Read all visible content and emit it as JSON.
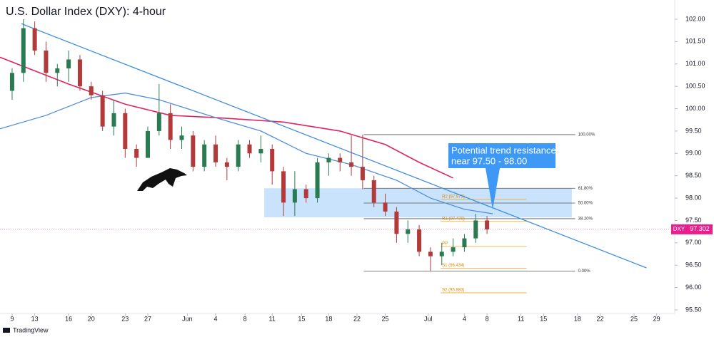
{
  "chart_data": {
    "type": "candlestick",
    "title": "U.S. Dollar Index (DXY): 4-hour",
    "x": [
      0,
      1,
      2,
      3,
      4,
      5,
      6,
      7,
      8,
      9,
      10,
      11,
      12,
      13,
      14,
      15,
      16,
      17,
      18,
      19,
      20,
      21,
      22,
      23,
      24,
      25,
      26,
      27,
      28,
      29,
      30,
      31,
      32,
      33,
      34,
      35,
      36,
      37,
      38,
      39,
      40,
      41,
      42
    ],
    "open": [
      100.4,
      100.8,
      101.8,
      101.3,
      100.8,
      100.9,
      101.1,
      100.5,
      100.3,
      99.6,
      99.9,
      99.1,
      98.9,
      99.5,
      99.9,
      99.3,
      99.4,
      98.7,
      99.2,
      98.8,
      98.7,
      99.2,
      99.0,
      99.1,
      98.6,
      97.9,
      98.2,
      98.0,
      98.8,
      98.9,
      98.8,
      98.7,
      98.4,
      97.9,
      97.7,
      97.2,
      97.3,
      96.8,
      96.7,
      96.8,
      96.9,
      97.1,
      97.5
    ],
    "high": [
      100.9,
      102.0,
      101.95,
      101.5,
      101.0,
      101.3,
      101.2,
      100.6,
      100.4,
      100.2,
      100.0,
      99.2,
      99.6,
      100.55,
      100.1,
      99.6,
      99.5,
      99.3,
      99.4,
      98.9,
      99.3,
      99.3,
      99.4,
      99.2,
      98.7,
      98.6,
      98.3,
      98.9,
      99.0,
      99.0,
      99.4,
      99.42,
      98.5,
      98.1,
      97.8,
      97.5,
      97.4,
      96.9,
      97.0,
      97.1,
      97.2,
      97.65,
      97.6
    ],
    "low": [
      100.2,
      100.6,
      101.2,
      100.6,
      100.5,
      100.6,
      100.4,
      100.2,
      99.5,
      99.4,
      98.9,
      98.7,
      98.9,
      99.4,
      99.1,
      99.1,
      98.6,
      98.6,
      98.7,
      98.4,
      98.6,
      98.9,
      98.8,
      98.3,
      97.6,
      97.6,
      97.9,
      97.9,
      98.5,
      98.6,
      98.5,
      98.2,
      97.8,
      97.6,
      97.0,
      97.0,
      96.7,
      96.37,
      96.5,
      96.7,
      96.8,
      97.0,
      97.2
    ],
    "close": [
      100.8,
      101.8,
      101.3,
      100.8,
      100.9,
      101.1,
      100.5,
      100.3,
      99.6,
      99.9,
      99.1,
      98.9,
      99.5,
      99.9,
      99.3,
      99.4,
      98.7,
      99.2,
      98.8,
      98.7,
      99.2,
      99.0,
      99.1,
      98.6,
      97.9,
      98.2,
      98.0,
      98.8,
      98.9,
      98.8,
      98.7,
      98.4,
      97.9,
      97.7,
      97.2,
      97.3,
      96.8,
      96.7,
      96.8,
      96.9,
      97.1,
      97.5,
      97.3
    ],
    "up_color": "#2a7a52",
    "down_color": "#b23a3a",
    "xlim": [
      -1.07,
      58.6
    ],
    "ylim": [
      95.42,
      102.43
    ],
    "xticks": [
      {
        "value": 0,
        "label": "9"
      },
      {
        "value": 2,
        "label": "13"
      },
      {
        "value": 5,
        "label": "16"
      },
      {
        "value": 7,
        "label": "20"
      },
      {
        "value": 10,
        "label": "23"
      },
      {
        "value": 12,
        "label": "27"
      },
      {
        "value": 15.5,
        "label": "Jun"
      },
      {
        "value": 18,
        "label": "4"
      },
      {
        "value": 20.6,
        "label": "8"
      },
      {
        "value": 23,
        "label": "11"
      },
      {
        "value": 25.6,
        "label": "15"
      },
      {
        "value": 28,
        "label": "18"
      },
      {
        "value": 30.5,
        "label": "22"
      },
      {
        "value": 33,
        "label": "25"
      },
      {
        "value": 36.8,
        "label": "Jul"
      },
      {
        "value": 40,
        "label": "4"
      },
      {
        "value": 42,
        "label": "8"
      },
      {
        "value": 45,
        "label": "11"
      },
      {
        "value": 47,
        "label": "15"
      },
      {
        "value": 50,
        "label": "18"
      },
      {
        "value": 52,
        "label": "22"
      },
      {
        "value": 55,
        "label": "25"
      },
      {
        "value": 57,
        "label": "29"
      }
    ],
    "yticks": [
      {
        "value": 102,
        "label": "102.00"
      },
      {
        "value": 101.5,
        "label": "101.50"
      },
      {
        "value": 101,
        "label": "101.00"
      },
      {
        "value": 100.5,
        "label": "100.50"
      },
      {
        "value": 100,
        "label": "100.00"
      },
      {
        "value": 99.5,
        "label": "99.50"
      },
      {
        "value": 99,
        "label": "99.00"
      },
      {
        "value": 98.5,
        "label": "98.50"
      },
      {
        "value": 98,
        "label": "98.00"
      },
      {
        "value": 97.5,
        "label": "97.50"
      },
      {
        "value": 97,
        "label": "97.00"
      },
      {
        "value": 96.5,
        "label": "96.50"
      },
      {
        "value": 96,
        "label": "96.00"
      },
      {
        "value": 95.5,
        "label": "95.50"
      }
    ],
    "grid": false,
    "lines": [
      {
        "color": "#e0245e",
        "x": [
          -1.07,
          5,
          10,
          14,
          18,
          24,
          29,
          33,
          36,
          39
        ],
        "values": [
          101.15,
          100.55,
          100.1,
          99.85,
          99.8,
          99.7,
          99.5,
          99.2,
          98.8,
          98.45
        ]
      },
      {
        "color": "#4f8fdd",
        "x": [
          -1.07,
          3,
          7,
          10,
          13,
          18,
          22,
          26,
          30,
          34,
          37,
          40,
          42.5
        ],
        "values": [
          99.55,
          99.85,
          100.25,
          100.35,
          100.2,
          99.8,
          99.5,
          99.0,
          98.75,
          98.4,
          98.0,
          97.75,
          97.65
        ]
      },
      {
        "color": "#3f8fe0",
        "x": [
          0.82,
          56.1
        ],
        "values": [
          101.9,
          96.44
        ]
      }
    ],
    "zone": [
      97.57,
      98.22
    ],
    "fib_levels": [
      {
        "value": 99.42,
        "label": "100.00%"
      },
      {
        "value": 98.22,
        "label": "61.80%"
      },
      {
        "value": 97.89,
        "label": "50.00%"
      },
      {
        "value": 97.54,
        "label": "38.20%"
      },
      {
        "value": 96.37,
        "label": "0.00%"
      }
    ],
    "pivots": [
      {
        "value": 97.973,
        "label": "R2 (97.973)"
      },
      {
        "value": 97.479,
        "label": "R1 (97.479)"
      },
      {
        "value": 96.92,
        "label": "PP"
      },
      {
        "value": 96.434,
        "label": "S1 (96.434)"
      },
      {
        "value": 95.883,
        "label": "S2 (95.883)"
      }
    ],
    "callout": [
      "Potential trend resistance",
      "near 97.50 - 98.00"
    ],
    "price_badge": {
      "symbol": "DXY",
      "value": 97.302,
      "label": "97.302"
    },
    "source": "TradingView"
  }
}
